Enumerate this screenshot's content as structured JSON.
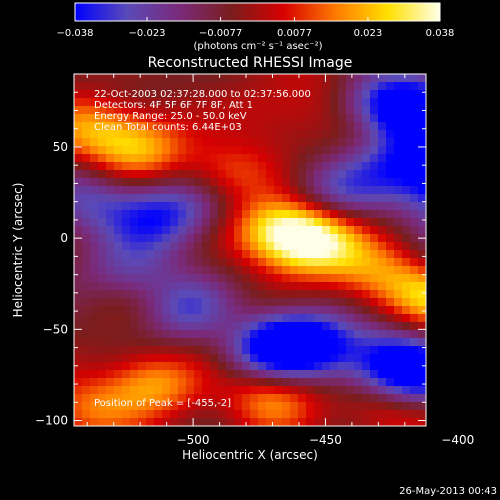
{
  "colorbar": {
    "range": [
      -0.038,
      0.038
    ],
    "tick_labels": [
      "−0.038",
      "−0.023",
      "−0.0077",
      "0.0077",
      "0.023",
      "0.038"
    ],
    "tick_values": [
      -0.038,
      -0.023,
      -0.0077,
      0.0077,
      0.023,
      0.038
    ],
    "units_label": "(photons cm⁻² s⁻¹ asec⁻²)",
    "colors": [
      "#0000ff",
      "#5a4ab8",
      "#7a2a7a",
      "#7a1d1d",
      "#d70000",
      "#ff7a00",
      "#ffe000",
      "#ffffe8"
    ]
  },
  "chart_data": {
    "type": "heatmap",
    "title": "Reconstructed RHESSI Image",
    "xlabel": "Heliocentric X (arcsec)",
    "ylabel": "Heliocentric Y (arcsec)",
    "xlim": [
      -545,
      -412
    ],
    "ylim": [
      -103,
      90
    ],
    "x_ticks": [
      -500,
      -450,
      -400
    ],
    "y_ticks": [
      -100,
      -50,
      0,
      50
    ],
    "x_tick_labels": [
      "−500",
      "−450",
      "−400"
    ],
    "y_tick_labels": [
      "−100",
      "−50",
      "0",
      "50"
    ],
    "annotations": [
      "22-Oct-2003 02:37:28.000 to 02:37:56.000",
      "Detectors: 4F 5F 6F 7F 8F, Att 1",
      "Energy Range: 25.0 - 50.0 keV",
      "Clean    Total counts: 6.44E+03"
    ],
    "peak_label": "Position of Peak = [-455,-2]",
    "peak": [
      -455,
      -2
    ],
    "value_range": [
      -0.038,
      0.038
    ],
    "blobs": [
      {
        "x": -455,
        "y": -2,
        "v": 0.038
      },
      {
        "x": -468,
        "y": 5,
        "v": 0.03
      },
      {
        "x": -432,
        "y": -18,
        "v": 0.02
      },
      {
        "x": -410,
        "y": -30,
        "v": 0.03
      },
      {
        "x": -390,
        "y": -45,
        "v": 0.015
      },
      {
        "x": -520,
        "y": 50,
        "v": 0.026
      },
      {
        "x": -488,
        "y": 35,
        "v": 0.02
      },
      {
        "x": -540,
        "y": 60,
        "v": 0.022
      },
      {
        "x": -470,
        "y": 70,
        "v": 0.01
      },
      {
        "x": -440,
        "y": 60,
        "v": 0.006
      },
      {
        "x": -490,
        "y": -45,
        "v": 0.012
      },
      {
        "x": -525,
        "y": -30,
        "v": 0.008
      },
      {
        "x": -515,
        "y": -80,
        "v": 0.026
      },
      {
        "x": -470,
        "y": -88,
        "v": 0.024
      },
      {
        "x": -425,
        "y": -92,
        "v": 0.02
      },
      {
        "x": -395,
        "y": -90,
        "v": 0.012
      },
      {
        "x": -540,
        "y": -95,
        "v": 0.02
      },
      {
        "x": -450,
        "y": 85,
        "v": 0.008
      },
      {
        "x": -415,
        "y": 70,
        "v": -0.03
      },
      {
        "x": -395,
        "y": 50,
        "v": -0.034
      },
      {
        "x": -400,
        "y": 25,
        "v": -0.03
      },
      {
        "x": -420,
        "y": 40,
        "v": -0.026
      },
      {
        "x": -375,
        "y": 10,
        "v": -0.028
      },
      {
        "x": -445,
        "y": 25,
        "v": -0.02
      },
      {
        "x": -430,
        "y": 75,
        "v": -0.024
      },
      {
        "x": -470,
        "y": -60,
        "v": -0.034
      },
      {
        "x": -455,
        "y": -58,
        "v": -0.03
      },
      {
        "x": -425,
        "y": -68,
        "v": -0.03
      },
      {
        "x": -500,
        "y": -40,
        "v": -0.028
      },
      {
        "x": -525,
        "y": -20,
        "v": -0.02
      },
      {
        "x": -415,
        "y": -80,
        "v": -0.028
      },
      {
        "x": -390,
        "y": -72,
        "v": -0.026
      },
      {
        "x": -515,
        "y": 10,
        "v": -0.022
      },
      {
        "x": -500,
        "y": 20,
        "v": -0.015
      },
      {
        "x": -540,
        "y": 20,
        "v": -0.018
      },
      {
        "x": -400,
        "y": -15,
        "v": -0.015
      }
    ]
  },
  "footer_date": "26-May-2013 00:43"
}
